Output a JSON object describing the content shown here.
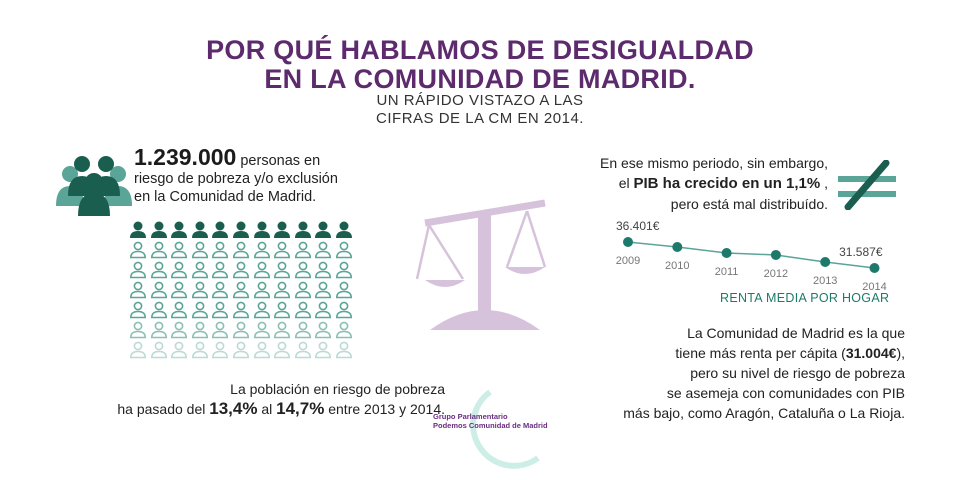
{
  "header": {
    "title_line1": "POR QUÉ HABLAMOS DE DESIGUALDAD",
    "title_line2": "EN LA COMUNIDAD DE MADRID.",
    "subtitle_line1": "UN RÁPIDO VISTAZO A LAS",
    "subtitle_line2": "CIFRAS DE LA CM EN 2014."
  },
  "poverty": {
    "number": "1.239.000",
    "text1": " personas en",
    "text2": "riesgo de pobreza y/o exclusión",
    "text3": "en la Comunidad de Madrid.",
    "icon": "people-group-icon",
    "grid_rows": 7,
    "grid_cols": 11,
    "filled_rows": 1
  },
  "rate": {
    "line1": "La población en riesgo de pobreza",
    "pre": "ha pasado del ",
    "from": "13,4%",
    "mid": " al ",
    "to": "14,7%",
    "post": " entre 2013 y 2014."
  },
  "pib": {
    "line1": "En ese mismo periodo, sin embargo,",
    "pre": "el ",
    "bold": "PIB ha crecido en un 1,1%",
    "post": " ,",
    "line3": "pero está mal distribuído.",
    "icon": "not-equal-icon"
  },
  "chart_data": {
    "type": "line",
    "x": [
      "2009",
      "2010",
      "2011",
      "2012",
      "2013",
      "2014"
    ],
    "values": [
      36401,
      35475,
      34366,
      34000,
      32700,
      31587
    ],
    "data_labels": {
      "first": "36.401€",
      "last": "31.587€"
    },
    "title": "RENTA MEDIA POR HOGAR",
    "color": "#1d7a6a"
  },
  "percapita": {
    "line1": "La Comunidad de Madrid es la que",
    "pre": "tiene más renta per cápita (",
    "bold": "31.004€",
    "post": "),",
    "line3": "pero su nivel de riesgo de pobreza",
    "line4": "se asemeja con comunidades con PIB",
    "line5": "más bajo, como  Aragón, Cataluña o La Rioja."
  },
  "logo": {
    "line1": "Grupo Parlamentario",
    "line2": "Podemos Comunidad de Madrid"
  },
  "colors": {
    "purple": "#5c2a6d",
    "teal_dark": "#1a5e50",
    "teal_light": "#5aa597",
    "scale": "#d6c3db"
  }
}
